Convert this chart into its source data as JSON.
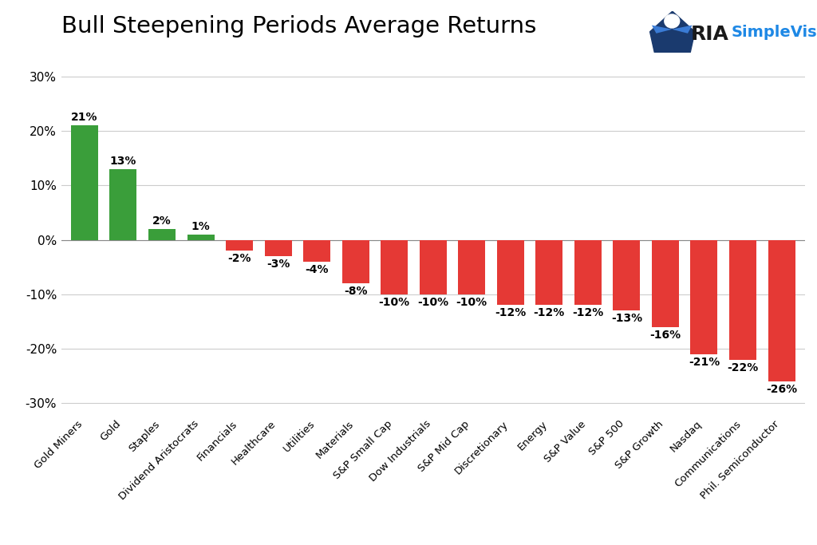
{
  "title": "Bull Steepening Periods Average Returns",
  "categories": [
    "Gold Miners",
    "Gold",
    "Staples",
    "Dividend Aristocrats",
    "Financials",
    "Healthcare",
    "Utilities",
    "Materials",
    "S&P Small Cap",
    "Dow Industrials",
    "S&P Mid Cap",
    "Discretionary",
    "Energy",
    "S&P Value",
    "S&P 500",
    "S&P Growth",
    "Nasdaq",
    "Communications",
    "Phil. Semiconductor"
  ],
  "values": [
    21,
    13,
    2,
    1,
    -2,
    -3,
    -4,
    -8,
    -10,
    -10,
    -10,
    -12,
    -12,
    -12,
    -13,
    -16,
    -21,
    -22,
    -26
  ],
  "bar_colors_positive": "#3a9e3a",
  "bar_colors_negative": "#e53935",
  "ylim": [
    -32,
    32
  ],
  "yticks": [
    -30,
    -20,
    -10,
    0,
    10,
    20,
    30
  ],
  "ytick_labels": [
    "-30%",
    "-20%",
    "-10%",
    "0%",
    "10%",
    "20%",
    "30%"
  ],
  "background_color": "#ffffff",
  "grid_color": "#cccccc",
  "title_fontsize": 21,
  "label_fontsize": 9.5,
  "tick_fontsize": 11,
  "bar_label_fontsize": 10
}
